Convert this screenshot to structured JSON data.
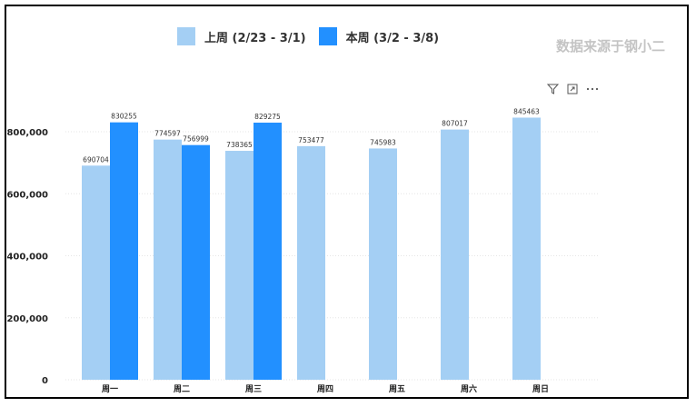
{
  "legend": {
    "last_week": "上周 (2/23 - 3/1)",
    "this_week": "本周 (3/2 - 3/8)"
  },
  "source_note": "数据来源于钢小二",
  "toolbar_icons": [
    "filter-icon",
    "expand-icon",
    "more-icon"
  ],
  "colors": {
    "last_week": "#a4cff4",
    "this_week": "#2290ff",
    "grid": "#e5e5e5"
  },
  "chart_data": {
    "type": "bar",
    "categories": [
      "周一",
      "周二",
      "周三",
      "周四",
      "周五",
      "周六",
      "周日"
    ],
    "series": [
      {
        "name": "上周 (2/23 - 3/1)",
        "values": [
          690704,
          774597,
          738365,
          753477,
          745983,
          807017,
          845463
        ]
      },
      {
        "name": "本周 (3/2 - 3/8)",
        "values": [
          830255,
          756999,
          829275,
          null,
          null,
          null,
          null
        ]
      }
    ],
    "yticks": [
      "0",
      "200,000",
      "400,000",
      "600,000",
      "800,000"
    ],
    "ytick_values": [
      0,
      200000,
      400000,
      600000,
      800000
    ],
    "ylim": [
      0,
      850000
    ],
    "legend_position": "top",
    "grid": true
  }
}
